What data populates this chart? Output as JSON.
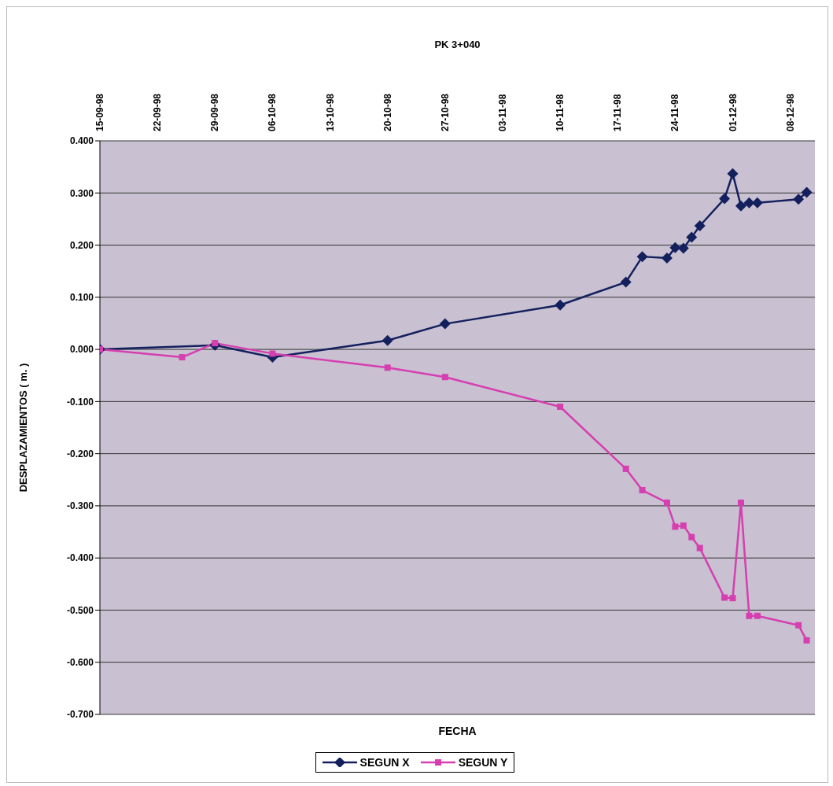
{
  "chart_data": {
    "type": "line",
    "title": "PK 3+040",
    "xlabel": "FECHA",
    "ylabel": "DESPLAZAMIENTOS ( m. )",
    "xlim": [
      "1998-09-15",
      "1998-12-11"
    ],
    "xticks": [
      {
        "value": "1998-09-15",
        "label": "15-09-98"
      },
      {
        "value": "1998-09-22",
        "label": "22-09-98"
      },
      {
        "value": "1998-09-29",
        "label": "29-09-98"
      },
      {
        "value": "1998-10-06",
        "label": "06-10-98"
      },
      {
        "value": "1998-10-13",
        "label": "13-10-98"
      },
      {
        "value": "1998-10-20",
        "label": "20-10-98"
      },
      {
        "value": "1998-10-27",
        "label": "27-10-98"
      },
      {
        "value": "1998-11-03",
        "label": "03-11-98"
      },
      {
        "value": "1998-11-10",
        "label": "10-11-98"
      },
      {
        "value": "1998-11-17",
        "label": "17-11-98"
      },
      {
        "value": "1998-11-24",
        "label": "24-11-98"
      },
      {
        "value": "1998-12-01",
        "label": "01-12-98"
      },
      {
        "value": "1998-12-08",
        "label": "08-12-98"
      }
    ],
    "ylim": [
      -0.7,
      0.4
    ],
    "yticks": [
      {
        "value": 0.4,
        "label": "0.400"
      },
      {
        "value": 0.3,
        "label": "0.300"
      },
      {
        "value": 0.2,
        "label": "0.200"
      },
      {
        "value": 0.1,
        "label": "0.100"
      },
      {
        "value": 0,
        "label": "0.000"
      },
      {
        "value": -0.1,
        "label": "-0.100"
      },
      {
        "value": -0.2,
        "label": "-0.200"
      },
      {
        "value": -0.3,
        "label": "-0.300"
      },
      {
        "value": -0.4,
        "label": "-0.400"
      },
      {
        "value": -0.5,
        "label": "-0.500"
      },
      {
        "value": -0.6,
        "label": "-0.600"
      },
      {
        "value": -0.7,
        "label": "-0.700"
      }
    ],
    "grid": "y",
    "legend": "bottom",
    "line_style": "solid",
    "series": [
      {
        "name": "SEGUN X",
        "color": "#14205e",
        "marker": "diamond",
        "x": [
          "1998-09-15",
          "1998-09-29",
          "1998-10-06",
          "1998-10-20",
          "1998-10-27",
          "1998-11-10",
          "1998-11-18",
          "1998-11-20",
          "1998-11-23",
          "1998-11-24",
          "1998-11-25",
          "1998-11-26",
          "1998-11-27",
          "1998-11-30",
          "1998-12-01",
          "1998-12-02",
          "1998-12-03",
          "1998-12-04",
          "1998-12-09",
          "1998-12-10"
        ],
        "values": [
          0,
          0.008,
          -0.015,
          0.017,
          0.049,
          0.085,
          0.129,
          0.178,
          0.175,
          0.195,
          0.194,
          0.215,
          0.237,
          0.289,
          0.337,
          0.275,
          0.281,
          0.281,
          0.288,
          0.301
        ]
      },
      {
        "name": "SEGUN Y",
        "color": "#d63fb0",
        "marker": "square",
        "x": [
          "1998-09-15",
          "1998-09-25",
          "1998-09-29",
          "1998-10-06",
          "1998-10-20",
          "1998-10-27",
          "1998-11-10",
          "1998-11-18",
          "1998-11-20",
          "1998-11-23",
          "1998-11-24",
          "1998-11-25",
          "1998-11-26",
          "1998-11-27",
          "1998-11-30",
          "1998-12-01",
          "1998-12-02",
          "1998-12-03",
          "1998-12-04",
          "1998-12-09",
          "1998-12-10"
        ],
        "values": [
          0,
          -0.015,
          0.012,
          -0.008,
          -0.035,
          -0.053,
          -0.11,
          -0.229,
          -0.27,
          -0.294,
          -0.34,
          -0.338,
          -0.36,
          -0.381,
          -0.476,
          -0.477,
          -0.294,
          -0.511,
          -0.511,
          -0.529,
          -0.558
        ]
      }
    ]
  }
}
